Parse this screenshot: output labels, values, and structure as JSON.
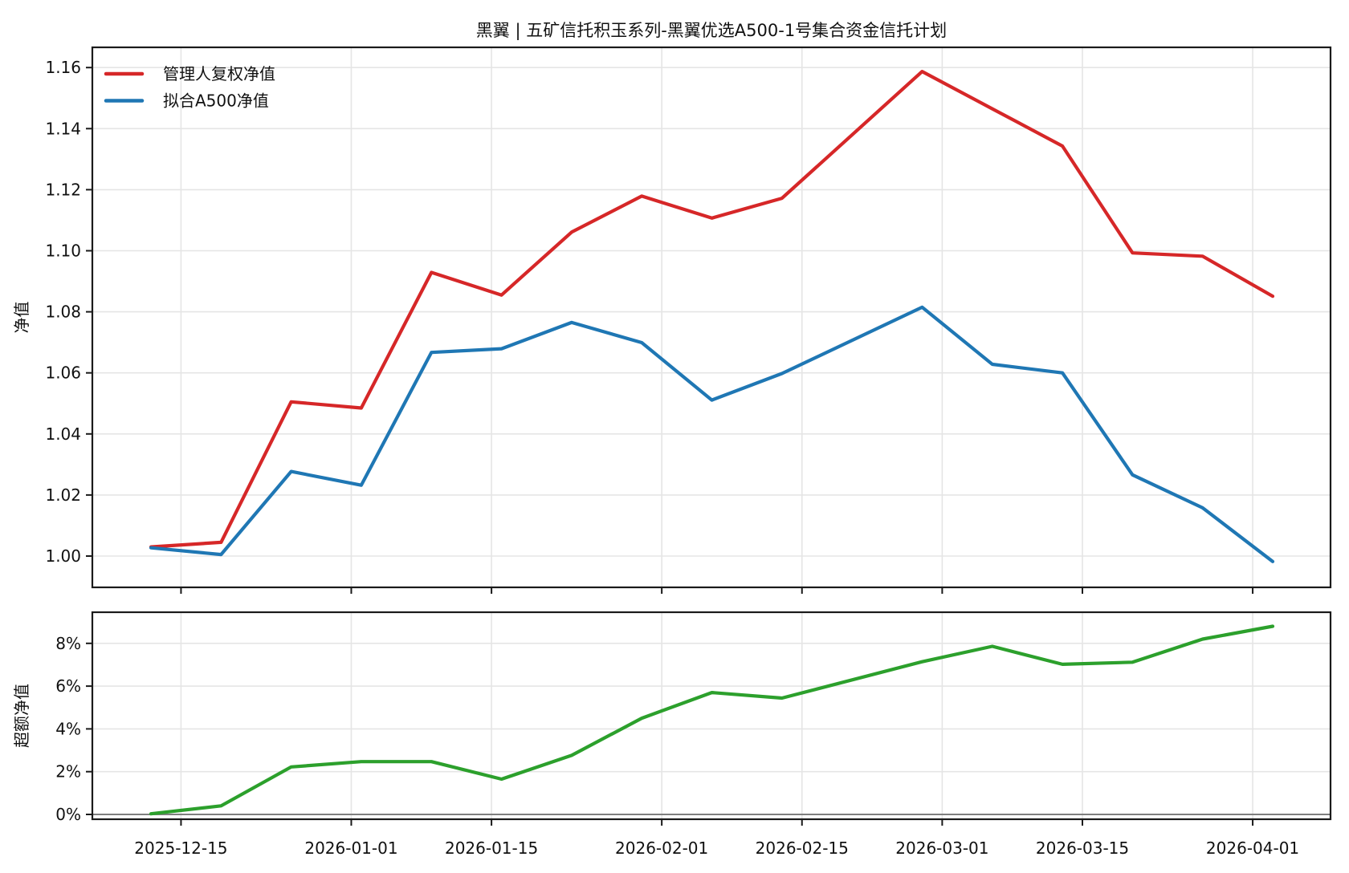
{
  "title": "黑翼 | 五矿信托积玉系列-黑翼优选A500-1号集合资金信托计划",
  "colors": {
    "manager_nav": "#d62728",
    "a500_nav": "#1f77b4",
    "excess_nav": "#2ca02c",
    "grid": "#e5e5e5",
    "spine": "#1a1a1a",
    "zero_line": "#7f7f7f"
  },
  "x_tick_labels": [
    "2025-12-15",
    "2026-01-01",
    "2026-01-15",
    "2026-02-01",
    "2026-02-15",
    "2026-03-01",
    "2026-03-15",
    "2026-04-01"
  ],
  "chart_data": [
    {
      "type": "line",
      "title": "黑翼 | 五矿信托积玉系列-黑翼优选A500-1号集合资金信托计划",
      "ylabel": "净值",
      "grid": true,
      "legend_position": "upper left",
      "x": [
        "2025-12-12",
        "2025-12-19",
        "2025-12-26",
        "2026-01-02",
        "2026-01-09",
        "2026-01-16",
        "2026-01-23",
        "2026-01-30",
        "2026-02-06",
        "2026-02-13",
        "2026-02-27",
        "2026-03-06",
        "2026-03-13",
        "2026-03-20",
        "2026-03-27",
        "2026-04-03"
      ],
      "series": [
        {
          "id": "manager-nav",
          "label": "管理人复权净值",
          "color": "#d62728",
          "values": [
            1.003,
            1.0045,
            1.0505,
            1.0485,
            1.0929,
            1.0855,
            1.1061,
            1.1179,
            1.1107,
            1.1172,
            1.1587,
            1.1465,
            1.1343,
            1.0993,
            1.0982,
            1.0851
          ]
        },
        {
          "id": "a500-nav",
          "label": "拟合A500净值",
          "color": "#1f77b4",
          "values": [
            1.0027,
            1.0005,
            1.0277,
            1.0232,
            1.0667,
            1.0679,
            1.0765,
            1.0699,
            1.0511,
            1.0598,
            1.0815,
            1.0628,
            1.06,
            1.0266,
            1.0158,
            0.9982
          ]
        }
      ],
      "yticks": [
        {
          "value": 1.0,
          "label": "1.00"
        },
        {
          "value": 1.02,
          "label": "1.02"
        },
        {
          "value": 1.04,
          "label": "1.04"
        },
        {
          "value": 1.06,
          "label": "1.06"
        },
        {
          "value": 1.08,
          "label": "1.08"
        },
        {
          "value": 1.1,
          "label": "1.10"
        },
        {
          "value": 1.12,
          "label": "1.12"
        },
        {
          "value": 1.14,
          "label": "1.14"
        },
        {
          "value": 1.16,
          "label": "1.16"
        }
      ],
      "ylim": [
        0.9898,
        1.1666
      ],
      "xtick_dates": [
        "2025-12-15",
        "2026-01-01",
        "2026-01-15",
        "2026-02-01",
        "2026-02-15",
        "2026-03-01",
        "2026-03-15",
        "2026-04-01"
      ],
      "show_x_labels": false
    },
    {
      "type": "line",
      "ylabel": "超额净值",
      "grid": true,
      "zero_line": true,
      "x": [
        "2025-12-12",
        "2025-12-19",
        "2025-12-26",
        "2026-01-02",
        "2026-01-09",
        "2026-01-16",
        "2026-01-23",
        "2026-01-30",
        "2026-02-06",
        "2026-02-13",
        "2026-02-27",
        "2026-03-06",
        "2026-03-13",
        "2026-03-20",
        "2026-03-27",
        "2026-04-03"
      ],
      "series": [
        {
          "id": "excess-nav",
          "label": "超额净值",
          "color": "#2ca02c",
          "values_pct": [
            0.03,
            0.4,
            2.22,
            2.47,
            2.47,
            1.65,
            2.76,
            4.5,
            5.7,
            5.44,
            7.14,
            7.86,
            7.02,
            7.12,
            8.2,
            8.8
          ]
        }
      ],
      "yticks": [
        {
          "value": 0,
          "label": "0%"
        },
        {
          "value": 2,
          "label": "2%"
        },
        {
          "value": 4,
          "label": "4%"
        },
        {
          "value": 6,
          "label": "6%"
        },
        {
          "value": 8,
          "label": "8%"
        }
      ],
      "ylim_pct": [
        -0.23,
        9.45
      ],
      "xtick_dates": [
        "2025-12-15",
        "2026-01-01",
        "2026-01-15",
        "2026-02-01",
        "2026-02-15",
        "2026-03-01",
        "2026-03-15",
        "2026-04-01"
      ],
      "show_x_labels": true
    }
  ]
}
